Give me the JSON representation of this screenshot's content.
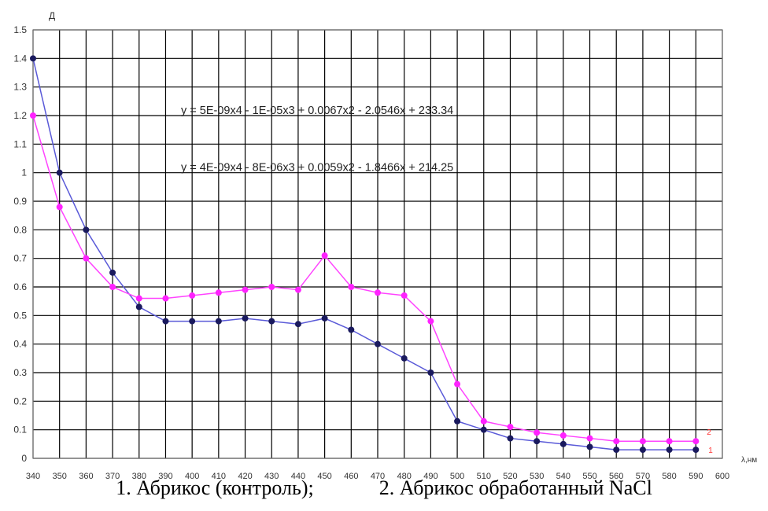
{
  "chart_data": {
    "type": "line",
    "ylabel": "Д",
    "xlabel": "λ,нм",
    "xlim": [
      340,
      600
    ],
    "ylim": [
      0,
      1.5
    ],
    "x_ticks": [
      "340",
      "350",
      "360",
      "370",
      "380",
      "390",
      "400",
      "410",
      "420",
      "430",
      "440",
      "450",
      "460",
      "470",
      "480",
      "490",
      "500",
      "510",
      "520",
      "530",
      "540",
      "550",
      "560",
      "570",
      "580",
      "590",
      "600"
    ],
    "y_ticks": [
      "0",
      "0.1",
      "0.2",
      "0.3",
      "0.4",
      "0.5",
      "0.6",
      "0.7",
      "0.8",
      "0.9",
      "1",
      "1.1",
      "1.2",
      "1.3",
      "1.4",
      "1.5"
    ],
    "x": [
      340,
      350,
      360,
      370,
      380,
      390,
      400,
      410,
      420,
      430,
      440,
      450,
      460,
      470,
      480,
      490,
      500,
      510,
      520,
      530,
      540,
      550,
      560,
      570,
      580,
      590
    ],
    "series": [
      {
        "label": "1",
        "color": "#5a5ad8",
        "marker_color": "#1a1a5e",
        "values": [
          1.4,
          1.0,
          0.8,
          0.65,
          0.53,
          0.48,
          0.48,
          0.48,
          0.49,
          0.48,
          0.47,
          0.49,
          0.45,
          0.4,
          0.35,
          0.3,
          0.13,
          0.1,
          0.07,
          0.06,
          0.05,
          0.04,
          0.03,
          0.03,
          0.03,
          0.03
        ]
      },
      {
        "label": "2",
        "color": "#ff44ff",
        "marker_color": "#ff22ff",
        "values": [
          1.2,
          0.88,
          0.7,
          0.6,
          0.56,
          0.56,
          0.57,
          0.58,
          0.59,
          0.6,
          0.59,
          0.71,
          0.6,
          0.58,
          0.57,
          0.48,
          0.26,
          0.13,
          0.11,
          0.09,
          0.08,
          0.07,
          0.06,
          0.06,
          0.06,
          0.06
        ]
      }
    ],
    "annotations": [
      "y = 5E-09x4 - 1E-05x3 + 0.0067x2 - 2.0546x + 233.34",
      "y = 4E-09x4 - 8E-06x3 + 0.0059x2 - 1.8466x + 214.25"
    ],
    "grid": true,
    "label_color": "#ff3333"
  },
  "caption": {
    "item1": "1. Абрикос (контроль);",
    "item2": "2. Абрикос обработанный NaCl"
  }
}
